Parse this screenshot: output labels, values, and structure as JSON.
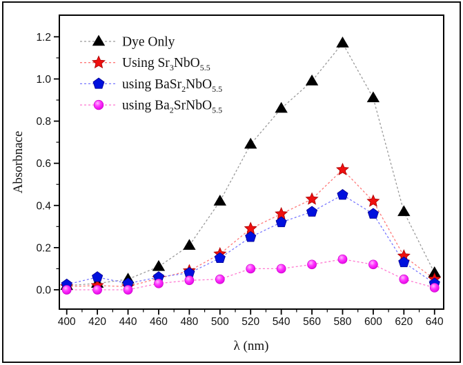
{
  "figure": {
    "background": "#ffffff",
    "border_color": "#0c0c0c"
  },
  "chart_data": {
    "type": "line",
    "title": "",
    "xlabel": "λ (nm)",
    "ylabel": "Absorbnace",
    "grid": false,
    "legend_position": "top-left-inside",
    "xlim": [
      395,
      646
    ],
    "ylim": [
      -0.09,
      1.29
    ],
    "x_ticks": [
      400,
      420,
      440,
      460,
      480,
      500,
      520,
      540,
      560,
      580,
      600,
      620,
      640
    ],
    "x_tick_labels": [
      "400",
      "420",
      "440",
      "460",
      "480",
      "500",
      "520",
      "540",
      "560",
      "580",
      "600",
      "620",
      "640"
    ],
    "y_ticks": [
      0.0,
      0.2,
      0.4,
      0.6,
      0.8,
      1.0,
      1.2
    ],
    "y_tick_labels": [
      "0.0",
      "0.2",
      "0.4",
      "0.6",
      "0.8",
      "1.0",
      "1.2"
    ],
    "x": [
      400,
      420,
      440,
      460,
      480,
      500,
      520,
      540,
      560,
      580,
      600,
      620,
      640
    ],
    "series": [
      {
        "name": "Dye Only",
        "label_segments": [
          {
            "t": "Dye Only"
          }
        ],
        "marker": "triangle",
        "marker_color": "#000000",
        "marker_edge": "#000000",
        "line_color": "#999999",
        "values": [
          0.02,
          0.03,
          0.05,
          0.11,
          0.21,
          0.42,
          0.69,
          0.86,
          0.99,
          1.17,
          0.91,
          0.37,
          0.08
        ]
      },
      {
        "name": "Using Sr3NbO5.5",
        "label_segments": [
          {
            "t": "Using Sr"
          },
          {
            "s": "3"
          },
          {
            "t": "NbO"
          },
          {
            "s": "5.5"
          }
        ],
        "marker": "star",
        "marker_color": "#ee1010",
        "marker_edge": "#aa0000",
        "line_color": "#ff7777",
        "values": [
          0.015,
          0.02,
          0.015,
          0.055,
          0.09,
          0.17,
          0.29,
          0.36,
          0.43,
          0.57,
          0.42,
          0.16,
          0.05
        ]
      },
      {
        "name": "using BaSr2NbO5.5",
        "label_segments": [
          {
            "t": "using BaSr"
          },
          {
            "s": "2"
          },
          {
            "t": "NbO"
          },
          {
            "s": "5.5"
          }
        ],
        "marker": "pentagon",
        "marker_color": "#0010dd",
        "marker_edge": "#000090",
        "line_color": "#7777ff",
        "values": [
          0.025,
          0.06,
          0.03,
          0.06,
          0.08,
          0.15,
          0.25,
          0.32,
          0.37,
          0.45,
          0.36,
          0.13,
          0.03
        ]
      },
      {
        "name": "using Ba2SrNbO5.5",
        "label_segments": [
          {
            "t": "using Ba"
          },
          {
            "s": "2"
          },
          {
            "t": "SrNbO"
          },
          {
            "s": "5.5"
          }
        ],
        "marker": "circle",
        "marker_color": "#ff00ff",
        "marker_edge": "#cc00cc",
        "line_color": "#ff77d0",
        "values": [
          0.0,
          0.0,
          0.0,
          0.03,
          0.045,
          0.05,
          0.1,
          0.1,
          0.12,
          0.145,
          0.12,
          0.05,
          0.01
        ]
      }
    ]
  }
}
